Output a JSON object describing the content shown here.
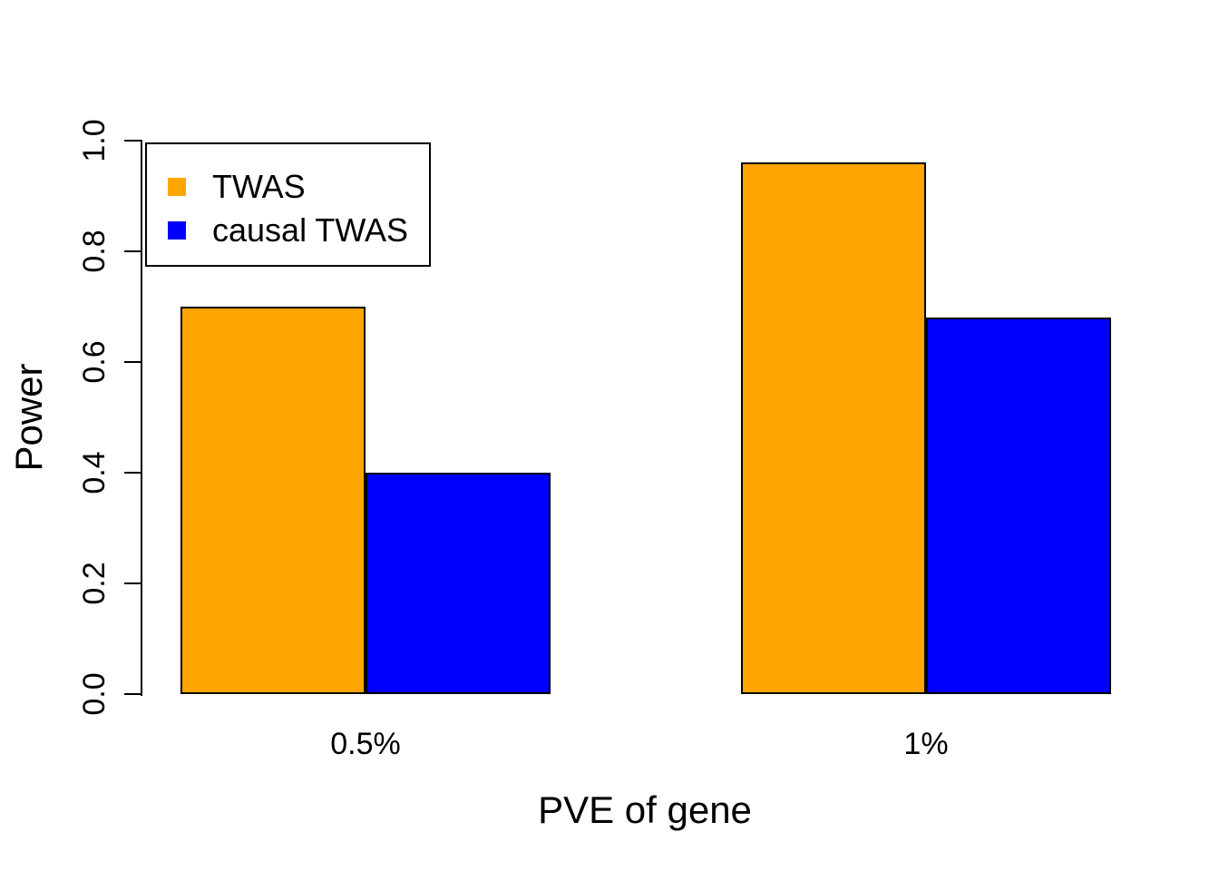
{
  "figure": {
    "background": "#ffffff",
    "text_color": "#000000",
    "axis_color": "#000000"
  },
  "chart_data": {
    "type": "bar",
    "title": "",
    "categories": [
      "0.5%",
      "1%"
    ],
    "series": [
      {
        "name": "TWAS",
        "color": "#FFA500",
        "values": [
          0.7,
          0.96
        ]
      },
      {
        "name": "causal TWAS",
        "color": "#0000FF",
        "values": [
          0.4,
          0.68
        ]
      }
    ],
    "xlabel": "PVE of gene",
    "ylabel": "Power",
    "ylim": [
      0,
      1
    ],
    "yticks": [
      0.0,
      0.2,
      0.4,
      0.6,
      0.8,
      1.0
    ],
    "ytick_labels": [
      "0.0",
      "0.2",
      "0.4",
      "0.6",
      "0.8",
      "1.0"
    ],
    "grid": false,
    "bar_border_color": "#000000",
    "legend": {
      "position": "top-left",
      "entries": [
        "TWAS",
        "causal TWAS"
      ]
    }
  }
}
